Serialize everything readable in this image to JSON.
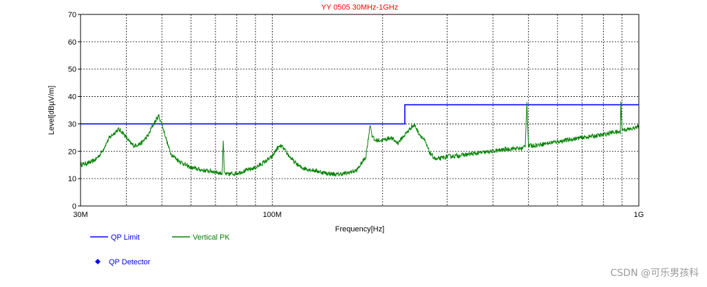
{
  "chart_data": {
    "type": "line",
    "title": "YY 0505 30MHz-1GHz",
    "xlabel": "Frequency[Hz]",
    "ylabel": "Level[dBµV/m]",
    "x_scale": "log",
    "xlim": [
      30000000,
      1000000000
    ],
    "ylim": [
      0,
      70
    ],
    "grid": true,
    "legend_position": "bottom-left",
    "x_ticks": [
      {
        "value": 30000000,
        "label": "30M"
      },
      {
        "value": 100000000,
        "label": "100M"
      },
      {
        "value": 1000000000,
        "label": "1G"
      }
    ],
    "y_ticks": [
      0,
      10,
      20,
      30,
      40,
      50,
      60,
      70
    ],
    "series": [
      {
        "name": "QP Limit",
        "color": "#0000ff",
        "x": [
          30000000,
          230000000,
          230000000,
          1000000000
        ],
        "y": [
          30,
          30,
          37,
          37
        ]
      },
      {
        "name": "Vertical PK",
        "color": "#008000",
        "x": [
          30000000,
          31000000,
          32000000,
          33000000,
          34000000,
          35000000,
          36000000,
          38000000,
          39000000,
          40000000,
          41000000,
          42000000,
          44000000,
          46000000,
          47000000,
          48000000,
          49000000,
          50000000,
          51000000,
          52000000,
          53000000,
          55000000,
          58000000,
          60000000,
          65000000,
          70000000,
          72000000,
          73000000,
          73500000,
          74000000,
          75000000,
          80000000,
          85000000,
          90000000,
          95000000,
          100000000,
          103000000,
          106000000,
          110000000,
          115000000,
          120000000,
          130000000,
          140000000,
          150000000,
          160000000,
          170000000,
          180000000,
          183000000,
          185000000,
          187000000,
          190000000,
          200000000,
          210000000,
          220000000,
          230000000,
          240000000,
          245000000,
          250000000,
          260000000,
          270000000,
          280000000,
          300000000,
          350000000,
          400000000,
          450000000,
          480000000,
          490000000,
          495000000,
          500000000,
          510000000,
          600000000,
          700000000,
          800000000,
          850000000,
          890000000,
          893000000,
          900000000,
          950000000,
          1000000000
        ],
        "y": [
          15,
          15.5,
          16,
          17,
          19,
          22,
          25,
          28,
          27,
          25,
          23,
          22,
          23,
          26,
          29,
          31,
          33,
          30,
          26,
          22,
          19,
          17,
          15,
          14,
          13,
          12.5,
          12,
          12,
          24,
          12,
          11.5,
          12,
          13,
          14,
          16,
          18,
          21,
          22,
          19,
          16,
          14,
          13,
          12,
          11.5,
          12,
          13,
          18,
          25,
          30,
          26,
          24,
          24,
          25,
          23,
          26,
          29,
          29.5,
          27,
          24,
          19,
          17,
          18,
          19,
          20,
          21,
          21,
          22,
          38,
          22,
          22,
          23.5,
          25,
          26,
          27,
          27,
          38,
          28,
          28,
          29
        ]
      }
    ],
    "legend": [
      {
        "label": "QP Limit",
        "color": "#0000ff",
        "marker": "line"
      },
      {
        "label": "Vertical PK",
        "color": "#008000",
        "marker": "line"
      },
      {
        "label": "QP Detector",
        "color": "#0000ff",
        "marker": "diamond"
      }
    ]
  },
  "watermark": "CSDN @可乐男孩科"
}
